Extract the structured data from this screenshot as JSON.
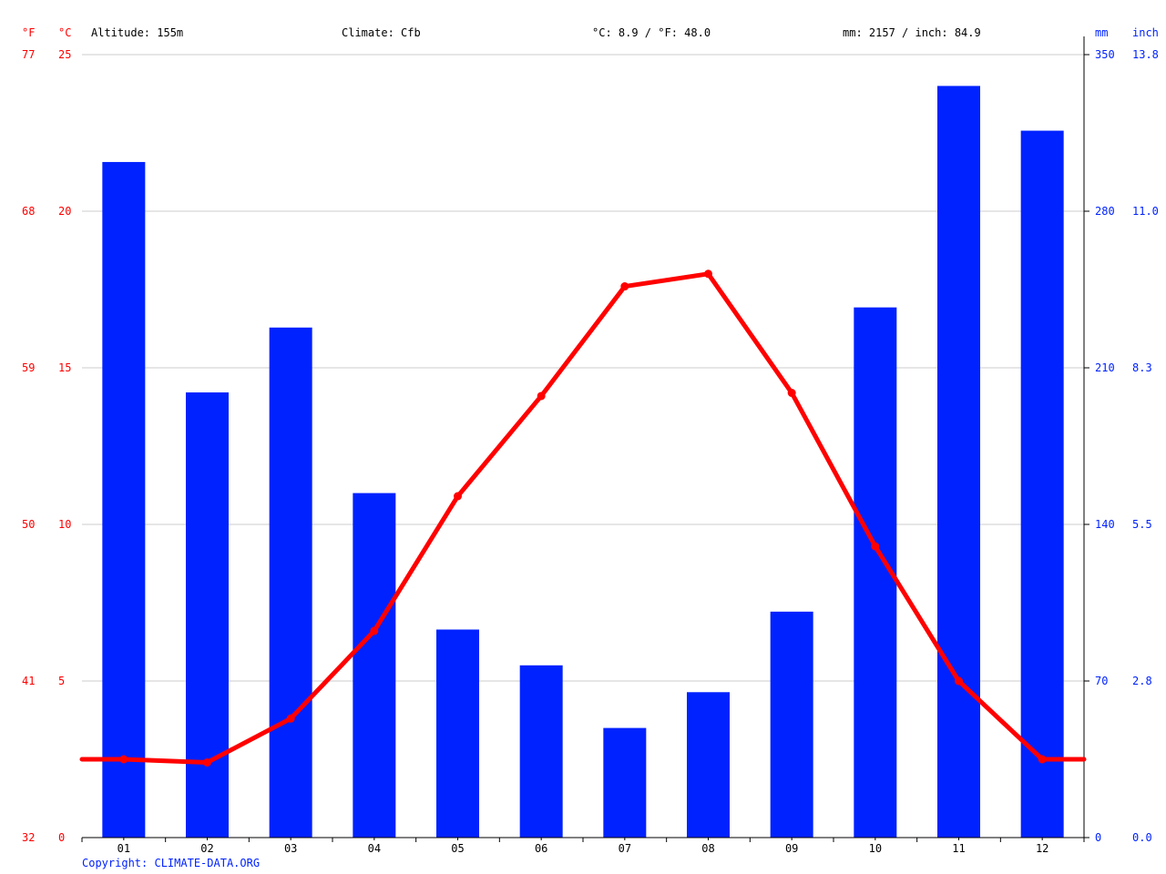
{
  "header": {
    "unit_f": "°F",
    "unit_c": "°C",
    "altitude": "Altitude: 155m",
    "climate": "Climate: Cfb",
    "temp_summary": "°C: 8.9 / °F: 48.0",
    "precip_summary": "mm: 2157 / inch: 84.9",
    "unit_mm": "mm",
    "unit_inch": "inch"
  },
  "footer": {
    "copyright": "Copyright: CLIMATE-DATA.ORG"
  },
  "colors": {
    "temperature": "#ff0000",
    "precipitation": "#0022ff",
    "grid": "#cccccc",
    "axis": "#000000"
  },
  "chart_data": {
    "type": "bar",
    "categories": [
      "01",
      "02",
      "03",
      "04",
      "05",
      "06",
      "07",
      "08",
      "09",
      "10",
      "11",
      "12"
    ],
    "series": [
      {
        "type": "bar",
        "axis": "right",
        "values": [
          302,
          199,
          228,
          154,
          93,
          77,
          49,
          65,
          101,
          237,
          336,
          316
        ]
      },
      {
        "type": "line",
        "axis": "left",
        "values": [
          2.5,
          2.4,
          3.8,
          6.6,
          10.9,
          14.1,
          17.6,
          18.0,
          14.2,
          9.3,
          5.0,
          2.5
        ]
      }
    ],
    "left_axis_c": {
      "ylim": [
        0,
        25
      ],
      "ticks": [
        "0",
        "5",
        "10",
        "15",
        "20",
        "25"
      ]
    },
    "left_axis_f": {
      "ticks": [
        "32",
        "41",
        "50",
        "59",
        "68",
        "77"
      ]
    },
    "right_axis_mm": {
      "ylim": [
        0,
        350
      ],
      "ticks": [
        "0",
        "70",
        "140",
        "210",
        "280",
        "350"
      ]
    },
    "right_axis_inch": {
      "ticks": [
        "0.0",
        "2.8",
        "5.5",
        "8.3",
        "11.0",
        "13.8"
      ]
    },
    "grid": true
  }
}
